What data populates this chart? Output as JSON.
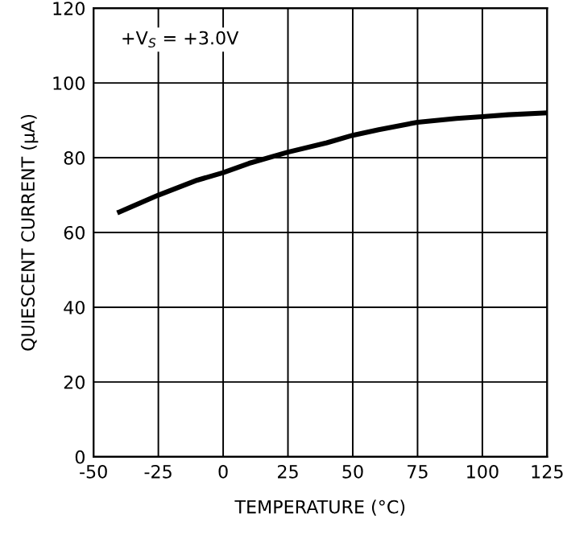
{
  "chart_data": {
    "type": "line",
    "x": [
      -40,
      -25,
      -10,
      0,
      10,
      25,
      40,
      50,
      60,
      75,
      90,
      100,
      110,
      125
    ],
    "series": [
      {
        "color": "#000000",
        "values": [
          65.5,
          70,
          74,
          76,
          78.5,
          81.5,
          84,
          86,
          87.5,
          89.5,
          90.5,
          91,
          91.5,
          92
        ]
      }
    ],
    "xlabel": "TEMPERATURE (°C)",
    "ylabel": "QUIESCENT CURRENT (μA)",
    "annotations": [
      "+V$_{S}$ = +3.0V"
    ],
    "xlim": [
      -50,
      125
    ],
    "xticks": [
      -50,
      -25,
      0,
      25,
      50,
      75,
      100,
      125
    ],
    "ylim": [
      0,
      120
    ],
    "yticks": [
      0,
      20,
      40,
      60,
      80,
      100,
      120
    ],
    "grid": true,
    "line_style": "solid"
  }
}
